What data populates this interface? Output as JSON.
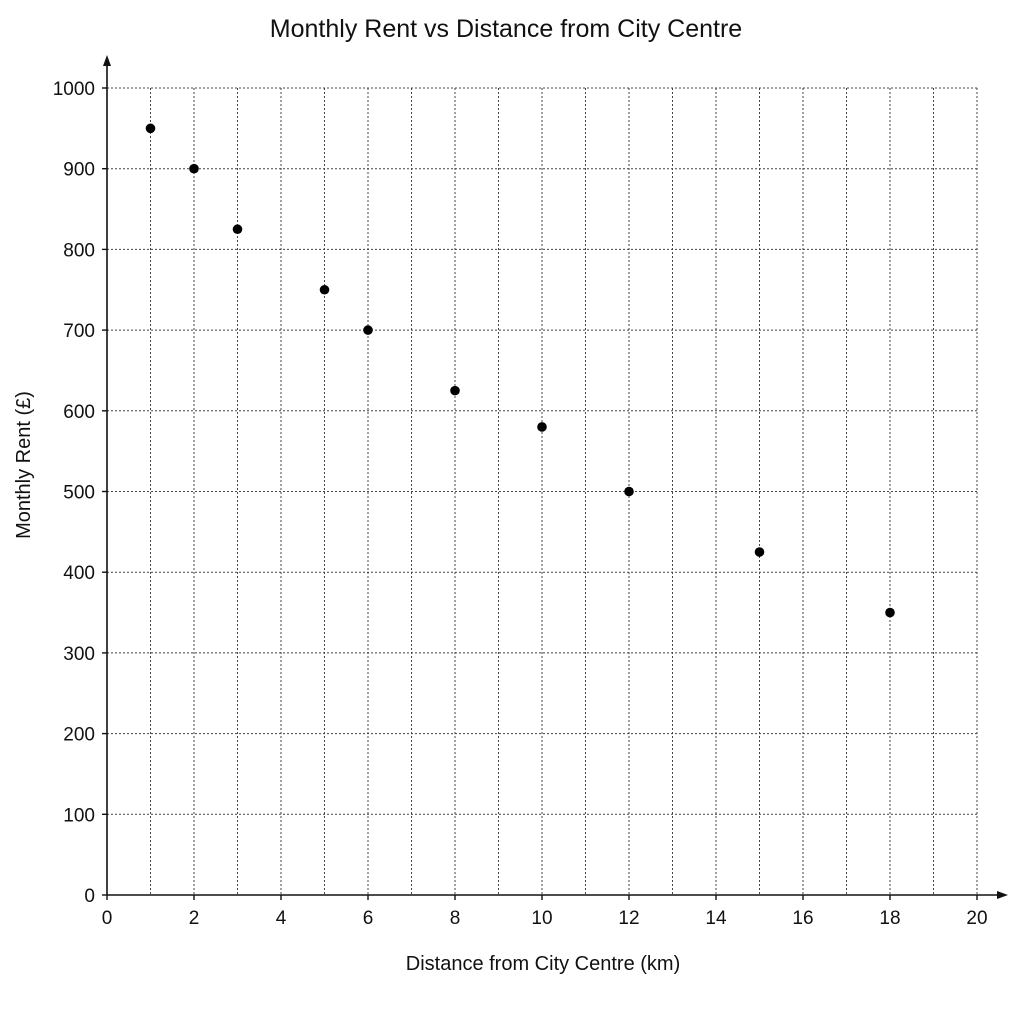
{
  "chart_data": {
    "type": "scatter",
    "title": "Monthly Rent vs Distance from City Centre",
    "xlabel": "Distance from City Centre (km)",
    "ylabel": "Monthly Rent (£)",
    "xlim": [
      0,
      20
    ],
    "ylim": [
      0,
      1000
    ],
    "xticks": [
      0,
      2,
      4,
      6,
      8,
      10,
      12,
      14,
      16,
      18,
      20
    ],
    "yticks": [
      0,
      100,
      200,
      300,
      400,
      500,
      600,
      700,
      800,
      900,
      1000
    ],
    "x_minor_grid_step": 1,
    "grid": true,
    "legend": "none",
    "marker_color": "#000000",
    "points": [
      {
        "x": 1,
        "y": 950
      },
      {
        "x": 2,
        "y": 900
      },
      {
        "x": 3,
        "y": 825
      },
      {
        "x": 5,
        "y": 750
      },
      {
        "x": 6,
        "y": 700
      },
      {
        "x": 8,
        "y": 625
      },
      {
        "x": 10,
        "y": 580
      },
      {
        "x": 12,
        "y": 500
      },
      {
        "x": 15,
        "y": 425
      },
      {
        "x": 18,
        "y": 350
      }
    ]
  }
}
